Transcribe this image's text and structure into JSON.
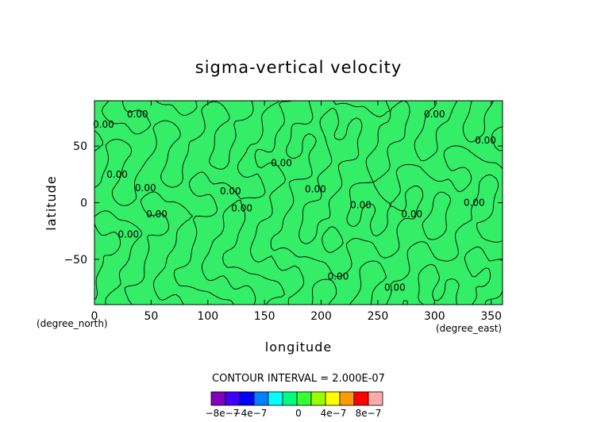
{
  "chart_data": {
    "type": "heatmap",
    "title": "sigma-vertical velocity",
    "xlabel": "longitude",
    "ylabel": "latitude",
    "x_unit": "(degree_east)",
    "y_unit": "(degree_north)",
    "xlim": [
      0,
      360
    ],
    "ylim": [
      -90,
      90
    ],
    "x_ticks": [
      "0",
      "50",
      "100",
      "150",
      "200",
      "250",
      "300",
      "350"
    ],
    "y_ticks": [
      "50",
      "0",
      "−50"
    ],
    "contour_interval_text": "CONTOUR INTERVAL = 2.000E-07",
    "contour_labels": [
      "0.00",
      "0.00",
      "0.00",
      "0.00",
      "0.00",
      "0.00",
      "0.00",
      "0.00",
      "0.00",
      "0.00",
      "0.00",
      "0.00",
      "0.00",
      "0.00",
      "0.00",
      "0.00",
      "0.00"
    ],
    "field_value_range": [
      -2e-07,
      2e-07
    ],
    "colorbar": {
      "colors": [
        "#7f00bf",
        "#3f00ff",
        "#0000ff",
        "#007fff",
        "#00ffff",
        "#00ff7f",
        "#33ff33",
        "#99ff00",
        "#ffff00",
        "#ff9900",
        "#ff0000",
        "#ffaaaa"
      ],
      "tick_labels": [
        "−8e−7",
        "−4e−7",
        "0",
        "4e−7",
        "8e−7"
      ]
    },
    "fill_color": "#33ee66",
    "line_color": "#000000"
  }
}
